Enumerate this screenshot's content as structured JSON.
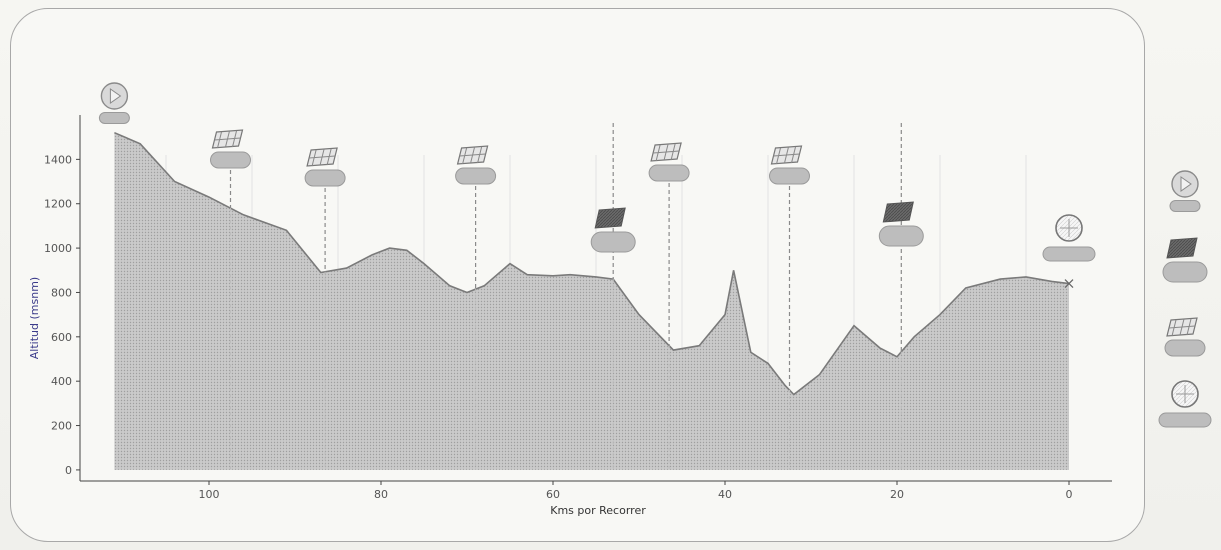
{
  "chart_data": {
    "type": "area",
    "title": "",
    "xlabel": "Kms por Recorrer",
    "ylabel": "Altitud (msnm)",
    "xlim": [
      115,
      -5
    ],
    "ylim": [
      -50,
      1600
    ],
    "x_ticks": [
      "100",
      "80",
      "60",
      "40",
      "20",
      "0"
    ],
    "x_tick_values": [
      100,
      80,
      60,
      40,
      20,
      0
    ],
    "y_ticks": [
      "0",
      "200",
      "400",
      "600",
      "800",
      "1000",
      "1200",
      "1400"
    ],
    "y_tick_values": [
      0,
      200,
      400,
      600,
      800,
      1000,
      1200,
      1400
    ],
    "grid": true,
    "x_reversed": true,
    "series": [
      {
        "x": [
          111,
          108,
          104,
          100,
          96,
          91,
          87,
          84,
          81,
          79,
          77,
          75,
          72,
          70,
          68,
          65,
          63,
          60,
          58,
          55,
          53,
          50,
          46,
          43,
          40,
          39,
          37,
          35,
          33,
          32,
          29,
          25,
          22,
          20,
          18,
          15,
          12,
          8,
          5,
          2,
          0
        ],
        "y": [
          1520,
          1470,
          1300,
          1230,
          1150,
          1080,
          890,
          910,
          970,
          1000,
          990,
          930,
          830,
          800,
          830,
          930,
          880,
          875,
          880,
          870,
          860,
          700,
          540,
          560,
          700,
          900,
          530,
          480,
          380,
          340,
          430,
          650,
          550,
          510,
          600,
          700,
          820,
          860,
          870,
          850,
          840
        ]
      }
    ],
    "markers": [
      {
        "km": 111,
        "type": "start"
      },
      {
        "km": 97.5,
        "type": "sprint"
      },
      {
        "km": 86.5,
        "type": "sprint"
      },
      {
        "km": 69,
        "type": "sprint"
      },
      {
        "km": 53,
        "type": "climb"
      },
      {
        "km": 46.5,
        "type": "sprint"
      },
      {
        "km": 32.5,
        "type": "sprint"
      },
      {
        "km": 19.5,
        "type": "climb"
      },
      {
        "km": 0,
        "type": "finish"
      }
    ],
    "legend_placement": "right",
    "legend_items": [
      "start",
      "climb",
      "sprint",
      "finish"
    ],
    "colors": {
      "fill": "#cfcfcf",
      "line": "#7a7a7a",
      "dashed": "#8a8a8a",
      "climb": "#6d6d6d",
      "sprint": "#e6e6e6",
      "badge": "#bdbdbd"
    }
  }
}
